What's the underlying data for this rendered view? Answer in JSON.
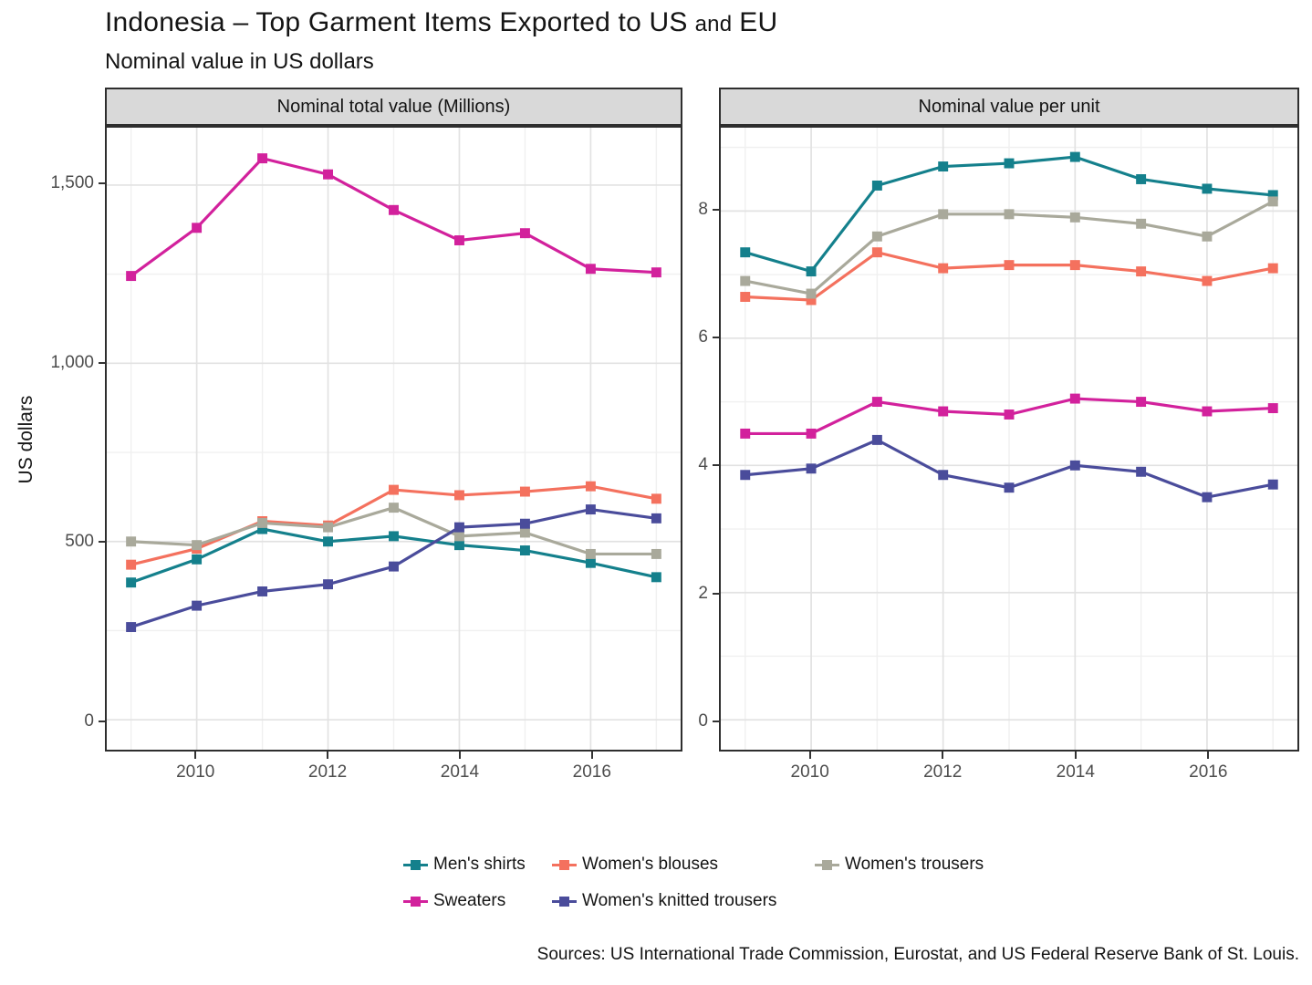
{
  "header": {
    "title_main": "Indonesia – Top Garment Items Exported to US",
    "title_and": "and",
    "title_eu": "EU",
    "subtitle": "Nominal value in US dollars"
  },
  "ylabel": "US dollars",
  "source": "Sources: US International Trade Commission, Eurostat, and US Federal Reserve Bank of St. Louis.",
  "colors": {
    "mens_shirts": "#14808c",
    "womens_blouses": "#f4715e",
    "womens_trousers": "#a9a99b",
    "sweaters": "#d2219c",
    "womens_knitted_trousers": "#4a4c9b",
    "strip_background": "#d9d9d9",
    "panel_border": "#2e2e2e",
    "grid_major": "#e2e2e2",
    "grid_minor": "#f0f0f0"
  },
  "chart_data": [
    {
      "type": "line",
      "strip_label": "Nominal total value (Millions)",
      "xlabel": "",
      "ylabel": "US dollars",
      "x": [
        2009,
        2010,
        2011,
        2012,
        2013,
        2014,
        2015,
        2016,
        2017
      ],
      "xlim": [
        2008.63,
        2017.37
      ],
      "xticks": [
        {
          "v": 2010,
          "label": "2010"
        },
        {
          "v": 2012,
          "label": "2012"
        },
        {
          "v": 2014,
          "label": "2014"
        },
        {
          "v": 2016,
          "label": "2016"
        }
      ],
      "xticks_minor": [
        2009,
        2011,
        2013,
        2015,
        2017
      ],
      "ylim": [
        -84,
        1661
      ],
      "yticks": [
        {
          "v": 0,
          "label": "0"
        },
        {
          "v": 500,
          "label": "500"
        },
        {
          "v": 1000,
          "label": "1,000"
        },
        {
          "v": 1500,
          "label": "1,500"
        }
      ],
      "yticks_minor": [
        250,
        750,
        1250
      ],
      "grid": true,
      "series": [
        {
          "name": "Men's shirts",
          "color": "#14808c",
          "values": [
            385,
            450,
            535,
            500,
            515,
            490,
            475,
            440,
            400
          ]
        },
        {
          "name": "Women's blouses",
          "color": "#f4715e",
          "values": [
            435,
            480,
            557,
            545,
            645,
            630,
            640,
            655,
            620
          ]
        },
        {
          "name": "Women's trousers",
          "color": "#a9a99b",
          "values": [
            500,
            490,
            552,
            540,
            595,
            515,
            525,
            465,
            465
          ]
        },
        {
          "name": "Sweaters",
          "color": "#d2219c",
          "values": [
            1245,
            1380,
            1575,
            1530,
            1430,
            1345,
            1365,
            1265,
            1255
          ]
        },
        {
          "name": "Women's knitted trousers",
          "color": "#4a4c9b",
          "values": [
            260,
            320,
            360,
            380,
            430,
            540,
            550,
            590,
            565
          ]
        }
      ]
    },
    {
      "type": "line",
      "strip_label": "Nominal value per unit",
      "xlabel": "",
      "ylabel": "US dollars",
      "x": [
        2009,
        2010,
        2011,
        2012,
        2013,
        2014,
        2015,
        2016,
        2017
      ],
      "xlim": [
        2008.63,
        2017.37
      ],
      "xticks": [
        {
          "v": 2010,
          "label": "2010"
        },
        {
          "v": 2012,
          "label": "2012"
        },
        {
          "v": 2014,
          "label": "2014"
        },
        {
          "v": 2016,
          "label": "2016"
        }
      ],
      "xticks_minor": [
        2009,
        2011,
        2013,
        2015,
        2017
      ],
      "ylim": [
        -0.47,
        9.31
      ],
      "yticks": [
        {
          "v": 0,
          "label": "0"
        },
        {
          "v": 2,
          "label": "2"
        },
        {
          "v": 4,
          "label": "4"
        },
        {
          "v": 6,
          "label": "6"
        },
        {
          "v": 8,
          "label": "8"
        }
      ],
      "yticks_minor": [
        1,
        3,
        5,
        7,
        9
      ],
      "grid": true,
      "series": [
        {
          "name": "Men's shirts",
          "color": "#14808c",
          "values": [
            7.35,
            7.05,
            8.4,
            8.7,
            8.75,
            8.85,
            8.5,
            8.35,
            8.25
          ]
        },
        {
          "name": "Women's blouses",
          "color": "#f4715e",
          "values": [
            6.65,
            6.6,
            7.35,
            7.1,
            7.15,
            7.15,
            7.05,
            6.9,
            7.1
          ]
        },
        {
          "name": "Women's trousers",
          "color": "#a9a99b",
          "values": [
            6.9,
            6.7,
            7.6,
            7.95,
            7.95,
            7.9,
            7.8,
            7.6,
            8.15
          ]
        },
        {
          "name": "Sweaters",
          "color": "#d2219c",
          "values": [
            4.5,
            4.5,
            5.0,
            4.85,
            4.8,
            5.05,
            5.0,
            4.85,
            4.9
          ]
        },
        {
          "name": "Women's knitted trousers",
          "color": "#4a4c9b",
          "values": [
            3.85,
            3.95,
            4.4,
            3.85,
            3.65,
            4.0,
            3.9,
            3.5,
            3.7
          ]
        }
      ]
    }
  ],
  "legend": {
    "items": [
      {
        "label": "Men's shirts",
        "color": "#14808c"
      },
      {
        "label": "Women's blouses",
        "color": "#f4715e"
      },
      {
        "label": "Women's trousers",
        "color": "#a9a99b"
      },
      {
        "label": "Sweaters",
        "color": "#d2219c"
      },
      {
        "label": "Women's knitted trousers",
        "color": "#4a4c9b"
      }
    ]
  }
}
